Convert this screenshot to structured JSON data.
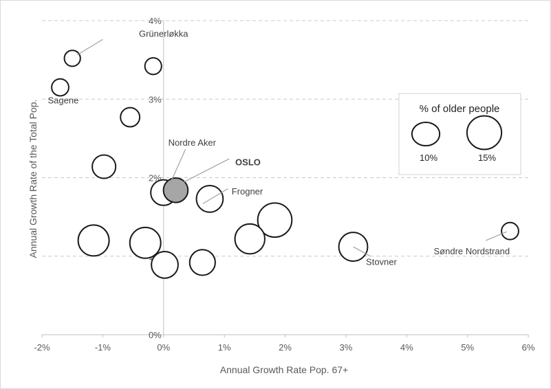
{
  "chart_data": {
    "type": "scatter",
    "subtype": "bubble",
    "title": "",
    "xlabel": "Annual Growth Rate Pop. 67+",
    "ylabel": "Annual Growth Rate of the Total Pop.",
    "xlim": [
      -2,
      6
    ],
    "ylim": [
      0,
      4
    ],
    "x_ticks": [
      -2,
      -1,
      0,
      1,
      2,
      3,
      4,
      5,
      6
    ],
    "y_ticks": [
      0,
      1,
      2,
      3,
      4
    ],
    "x_tick_labels": [
      "-2%",
      "-1%",
      "0%",
      "1%",
      "2%",
      "3%",
      "4%",
      "5%",
      "6%"
    ],
    "y_tick_labels": [
      "0%",
      "1%",
      "2%",
      "3%",
      "4%"
    ],
    "grid": "horizontal dashed",
    "size_variable": "% of older people",
    "points": [
      {
        "x": -1.5,
        "y": 3.52,
        "size": 7.5,
        "label": "Grünerløkka"
      },
      {
        "x": -1.7,
        "y": 3.15,
        "size": 8.0,
        "label": "Sagene"
      },
      {
        "x": -0.17,
        "y": 3.42,
        "size": 7.8,
        "label": ""
      },
      {
        "x": -0.55,
        "y": 2.77,
        "size": 9.0,
        "label": ""
      },
      {
        "x": -0.98,
        "y": 2.14,
        "size": 11.0,
        "label": ""
      },
      {
        "x": 0.0,
        "y": 1.81,
        "size": 12.0,
        "label": "Nordre Aker"
      },
      {
        "x": 0.2,
        "y": 1.84,
        "size": 11.5,
        "label": "OSLO",
        "highlight": true
      },
      {
        "x": 0.76,
        "y": 1.73,
        "size": 12.5,
        "label": "Frogner"
      },
      {
        "x": 1.83,
        "y": 1.46,
        "size": 16.0,
        "label": ""
      },
      {
        "x": 1.42,
        "y": 1.22,
        "size": 14.0,
        "label": ""
      },
      {
        "x": -1.15,
        "y": 1.2,
        "size": 14.5,
        "label": ""
      },
      {
        "x": -0.3,
        "y": 1.17,
        "size": 14.5,
        "label": ""
      },
      {
        "x": 0.02,
        "y": 0.89,
        "size": 12.5,
        "label": ""
      },
      {
        "x": 0.64,
        "y": 0.92,
        "size": 12.0,
        "label": ""
      },
      {
        "x": 3.12,
        "y": 1.12,
        "size": 13.5,
        "label": "Stovner"
      },
      {
        "x": 5.7,
        "y": 1.32,
        "size": 8.0,
        "label": "Søndre Nordstrand"
      }
    ],
    "legend": {
      "title": "% of older people",
      "position": "right",
      "items": [
        {
          "label": "10%",
          "size": 10
        },
        {
          "label": "15%",
          "size": 15
        }
      ]
    },
    "colors": {
      "bubble_fill": "#ffffff",
      "bubble_stroke": "#1a1a1a",
      "highlight_fill": "#a6a6a6",
      "grid": "#c8c8c8",
      "axis": "#bfbfbf",
      "text": "#595959"
    }
  }
}
